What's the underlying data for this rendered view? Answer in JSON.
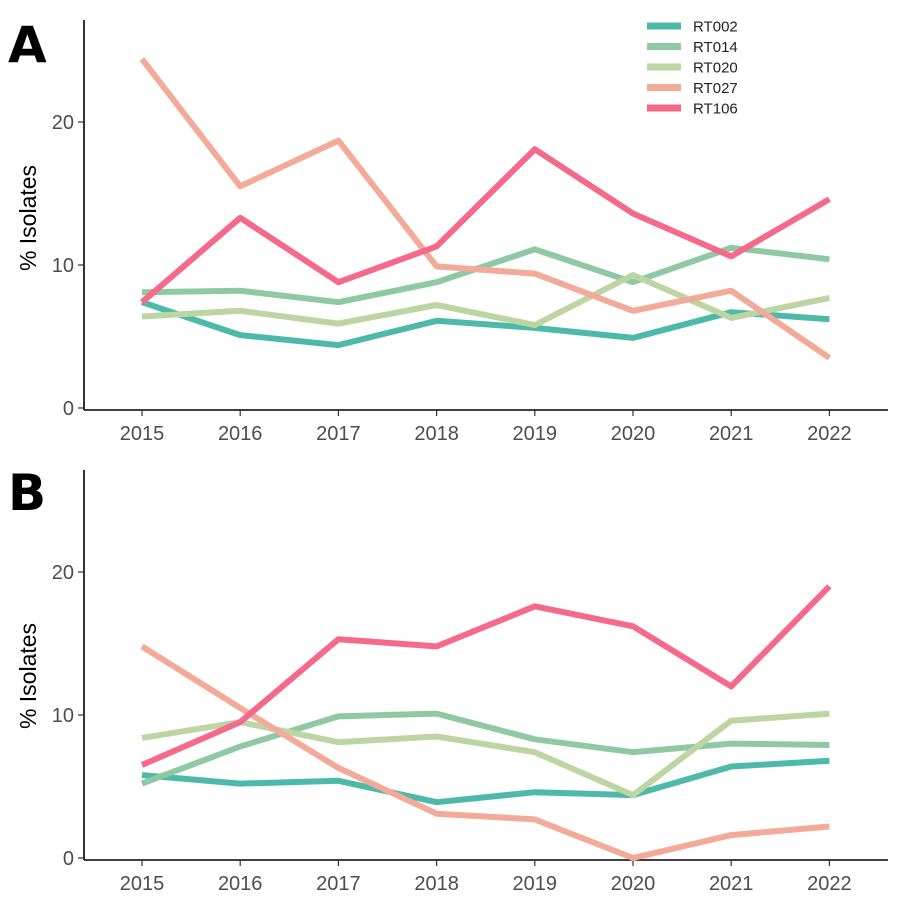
{
  "chart_data": [
    {
      "type": "line",
      "panel": "A",
      "ylabel": "% Isolates",
      "xlabel": "",
      "ylim": [
        0,
        26
      ],
      "yticks": [
        0,
        10,
        20
      ],
      "categories": [
        "2015",
        "2016",
        "2017",
        "2018",
        "2019",
        "2020",
        "2021",
        "2022"
      ],
      "series": [
        {
          "name": "RT002",
          "color": "#4cb9a9",
          "values": [
            7.4,
            5.1,
            4.4,
            6.1,
            5.6,
            4.9,
            6.7,
            6.2
          ]
        },
        {
          "name": "RT014",
          "color": "#8fc9a3",
          "values": [
            8.1,
            8.2,
            7.4,
            8.8,
            11.1,
            8.8,
            11.2,
            10.4
          ]
        },
        {
          "name": "RT020",
          "color": "#bcd5a2",
          "values": [
            6.4,
            6.8,
            5.9,
            7.2,
            5.8,
            9.3,
            6.3,
            7.7
          ]
        },
        {
          "name": "RT027",
          "color": "#f4aa98",
          "values": [
            24.4,
            15.5,
            18.7,
            9.9,
            9.4,
            6.8,
            8.2,
            3.5
          ]
        },
        {
          "name": "RT106",
          "color": "#f56a8a",
          "values": [
            7.4,
            13.3,
            8.8,
            11.3,
            18.1,
            13.6,
            10.6,
            14.6
          ]
        }
      ]
    },
    {
      "type": "line",
      "panel": "B",
      "ylabel": "% Isolates",
      "xlabel": "",
      "ylim": [
        0,
        27.5
      ],
      "yticks": [
        0,
        10,
        20
      ],
      "categories": [
        "2015",
        "2016",
        "2017",
        "2018",
        "2019",
        "2020",
        "2021",
        "2022"
      ],
      "series": [
        {
          "name": "RT002",
          "color": "#4cb9a9",
          "values": [
            5.8,
            5.2,
            5.4,
            3.9,
            4.6,
            4.4,
            6.4,
            6.8
          ]
        },
        {
          "name": "RT014",
          "color": "#8fc9a3",
          "values": [
            5.2,
            7.8,
            9.9,
            10.1,
            8.3,
            7.4,
            8.0,
            7.9
          ]
        },
        {
          "name": "RT020",
          "color": "#bcd5a2",
          "values": [
            8.4,
            9.5,
            8.1,
            8.5,
            7.4,
            4.4,
            9.6,
            10.1
          ]
        },
        {
          "name": "RT027",
          "color": "#f4aa98",
          "values": [
            14.8,
            10.5,
            6.3,
            3.1,
            2.7,
            0.0,
            1.6,
            2.2
          ]
        },
        {
          "name": "RT106",
          "color": "#f56a8a",
          "values": [
            6.5,
            9.5,
            15.3,
            14.8,
            17.6,
            16.2,
            12.0,
            19.0
          ]
        }
      ]
    }
  ]
}
